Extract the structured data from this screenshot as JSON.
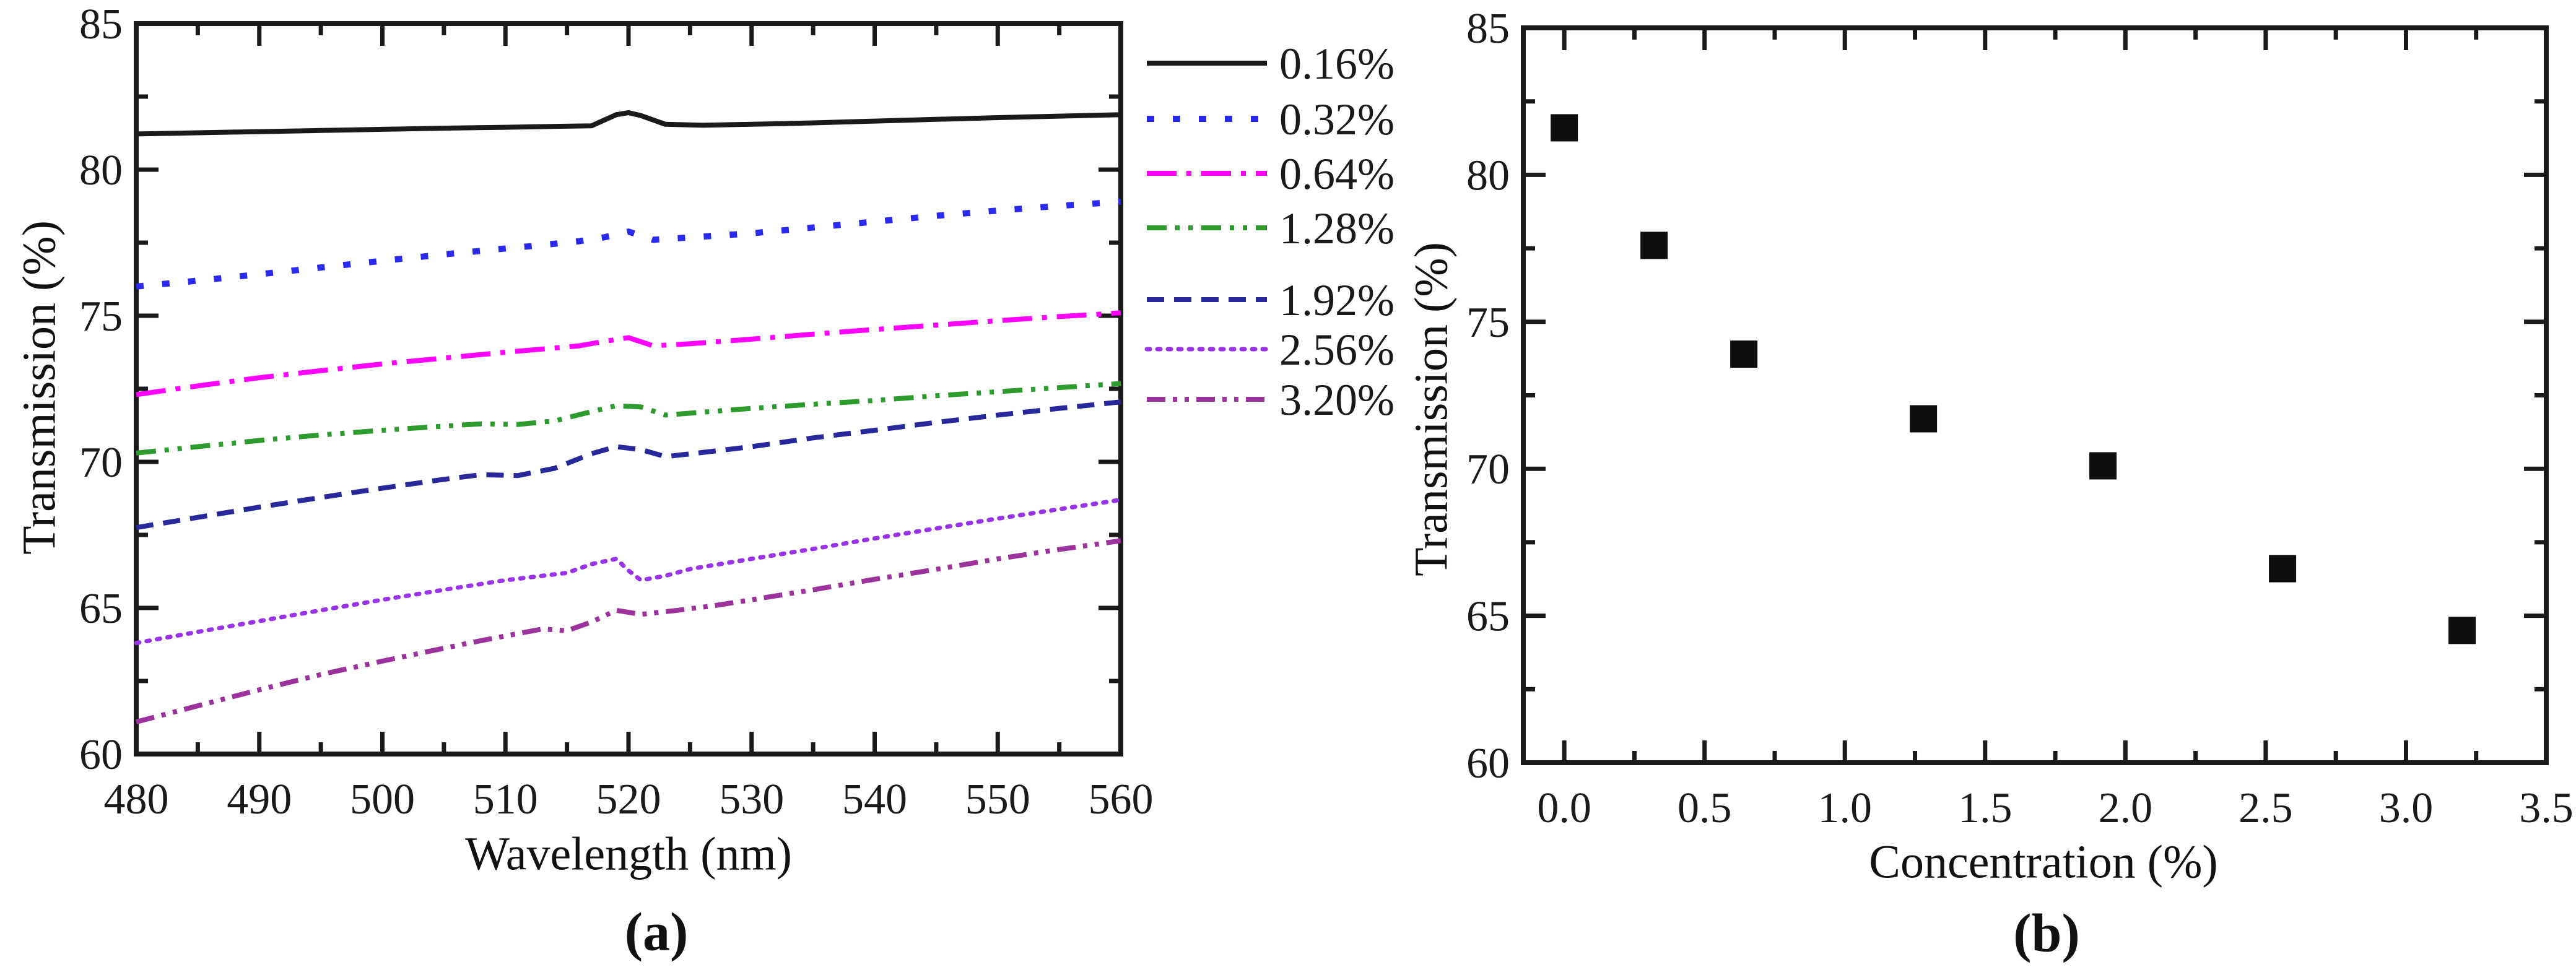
{
  "chart_data": [
    {
      "id": "a",
      "panel_label": "(a)",
      "type": "line",
      "xlabel": "Wavelength (nm)",
      "ylabel": "Transmission (%)",
      "xlim": [
        480,
        560
      ],
      "ylim": [
        60,
        85
      ],
      "x_major_ticks": [
        480,
        490,
        500,
        510,
        520,
        530,
        540,
        550,
        560
      ],
      "x_tick_labels": [
        "480",
        "490",
        "500",
        "510",
        "520",
        "530",
        "540",
        "550",
        "560"
      ],
      "x_minor_step": 5,
      "y_major_ticks": [
        60,
        65,
        70,
        75,
        80,
        85
      ],
      "y_tick_labels": [
        "60",
        "65",
        "70",
        "75",
        "80",
        "85"
      ],
      "y_minor_step": 2.5,
      "grid": false,
      "legend_position": "outside-right",
      "series": [
        {
          "name": "0.16%",
          "color": "#1a1a1a",
          "dash": [],
          "width": 8,
          "points": [
            [
              480,
              81.22
            ],
            [
              485,
              81.26
            ],
            [
              490,
              81.3
            ],
            [
              495,
              81.34
            ],
            [
              500,
              81.38
            ],
            [
              505,
              81.42
            ],
            [
              510,
              81.45
            ],
            [
              514,
              81.48
            ],
            [
              517,
              81.5
            ],
            [
              519,
              81.88
            ],
            [
              520,
              81.95
            ],
            [
              521,
              81.85
            ],
            [
              523,
              81.55
            ],
            [
              526,
              81.52
            ],
            [
              530,
              81.55
            ],
            [
              535,
              81.6
            ],
            [
              540,
              81.66
            ],
            [
              545,
              81.72
            ],
            [
              550,
              81.78
            ],
            [
              555,
              81.83
            ],
            [
              560,
              81.88
            ]
          ]
        },
        {
          "name": "0.32%",
          "color": "#2a2aee",
          "dash": [
            12,
            30
          ],
          "width": 10,
          "points": [
            [
              480,
              76.0
            ],
            [
              485,
              76.2
            ],
            [
              490,
              76.42
            ],
            [
              495,
              76.65
            ],
            [
              500,
              76.88
            ],
            [
              505,
              77.1
            ],
            [
              510,
              77.3
            ],
            [
              513,
              77.42
            ],
            [
              516,
              77.55
            ],
            [
              518,
              77.68
            ],
            [
              520,
              77.88
            ],
            [
              522,
              77.6
            ],
            [
              525,
              77.68
            ],
            [
              530,
              77.82
            ],
            [
              535,
              78.02
            ],
            [
              540,
              78.22
            ],
            [
              545,
              78.42
            ],
            [
              550,
              78.6
            ],
            [
              555,
              78.76
            ],
            [
              560,
              78.9
            ]
          ]
        },
        {
          "name": "0.64%",
          "color": "#ff00ff",
          "dash": [
            48,
            16,
            8,
            16
          ],
          "width": 8,
          "points": [
            [
              480,
              72.3
            ],
            [
              485,
              72.6
            ],
            [
              490,
              72.88
            ],
            [
              495,
              73.12
            ],
            [
              500,
              73.35
            ],
            [
              505,
              73.55
            ],
            [
              510,
              73.75
            ],
            [
              513,
              73.86
            ],
            [
              516,
              73.97
            ],
            [
              518,
              74.12
            ],
            [
              520,
              74.25
            ],
            [
              522,
              73.97
            ],
            [
              525,
              74.04
            ],
            [
              530,
              74.2
            ],
            [
              535,
              74.37
            ],
            [
              540,
              74.53
            ],
            [
              545,
              74.68
            ],
            [
              550,
              74.83
            ],
            [
              555,
              74.97
            ],
            [
              560,
              75.1
            ]
          ]
        },
        {
          "name": "1.28%",
          "color": "#2e9b2e",
          "dash": [
            32,
            14,
            7,
            14,
            7,
            14
          ],
          "width": 8,
          "points": [
            [
              480,
              70.3
            ],
            [
              485,
              70.52
            ],
            [
              490,
              70.73
            ],
            [
              495,
              70.92
            ],
            [
              500,
              71.08
            ],
            [
              505,
              71.22
            ],
            [
              508,
              71.3
            ],
            [
              511,
              71.28
            ],
            [
              514,
              71.4
            ],
            [
              517,
              71.72
            ],
            [
              519,
              71.92
            ],
            [
              521,
              71.88
            ],
            [
              523,
              71.6
            ],
            [
              526,
              71.7
            ],
            [
              530,
              71.83
            ],
            [
              535,
              71.97
            ],
            [
              540,
              72.1
            ],
            [
              545,
              72.26
            ],
            [
              550,
              72.4
            ],
            [
              555,
              72.54
            ],
            [
              560,
              72.68
            ]
          ]
        },
        {
          "name": "1.92%",
          "color": "#28289a",
          "dash": [
            28,
            16
          ],
          "width": 8,
          "points": [
            [
              480,
              67.75
            ],
            [
              485,
              68.1
            ],
            [
              490,
              68.45
            ],
            [
              495,
              68.78
            ],
            [
              500,
              69.1
            ],
            [
              505,
              69.4
            ],
            [
              508,
              69.56
            ],
            [
              511,
              69.53
            ],
            [
              514,
              69.78
            ],
            [
              517,
              70.28
            ],
            [
              519,
              70.52
            ],
            [
              521,
              70.42
            ],
            [
              523,
              70.18
            ],
            [
              526,
              70.32
            ],
            [
              530,
              70.52
            ],
            [
              535,
              70.82
            ],
            [
              540,
              71.08
            ],
            [
              545,
              71.35
            ],
            [
              550,
              71.6
            ],
            [
              555,
              71.83
            ],
            [
              560,
              72.05
            ]
          ]
        },
        {
          "name": "2.56%",
          "color": "#9933e6",
          "dash": [
            5,
            12
          ],
          "width": 7,
          "points": [
            [
              480,
              63.8
            ],
            [
              485,
              64.18
            ],
            [
              490,
              64.55
            ],
            [
              495,
              64.92
            ],
            [
              500,
              65.28
            ],
            [
              505,
              65.62
            ],
            [
              510,
              65.95
            ],
            [
              513,
              66.1
            ],
            [
              515,
              66.2
            ],
            [
              517,
              66.5
            ],
            [
              519,
              66.68
            ],
            [
              520,
              66.28
            ],
            [
              521,
              65.95
            ],
            [
              523,
              66.1
            ],
            [
              525,
              66.33
            ],
            [
              530,
              66.68
            ],
            [
              535,
              67.02
            ],
            [
              540,
              67.38
            ],
            [
              545,
              67.72
            ],
            [
              550,
              68.06
            ],
            [
              555,
              68.38
            ],
            [
              560,
              68.7
            ]
          ]
        },
        {
          "name": "3.20%",
          "color": "#9c339c",
          "dash": [
            30,
            12,
            7,
            12,
            7,
            12
          ],
          "width": 8,
          "points": [
            [
              480,
              61.1
            ],
            [
              485,
              61.65
            ],
            [
              490,
              62.2
            ],
            [
              495,
              62.72
            ],
            [
              500,
              63.18
            ],
            [
              505,
              63.62
            ],
            [
              508,
              63.88
            ],
            [
              511,
              64.12
            ],
            [
              513,
              64.28
            ],
            [
              515,
              64.22
            ],
            [
              517,
              64.52
            ],
            [
              519,
              64.92
            ],
            [
              521,
              64.78
            ],
            [
              524,
              64.92
            ],
            [
              527,
              65.08
            ],
            [
              530,
              65.28
            ],
            [
              535,
              65.62
            ],
            [
              540,
              65.98
            ],
            [
              545,
              66.32
            ],
            [
              550,
              66.68
            ],
            [
              555,
              67.0
            ],
            [
              560,
              67.3
            ]
          ]
        }
      ]
    },
    {
      "id": "b",
      "panel_label": "(b)",
      "type": "scatter",
      "xlabel": "Concentration (%)",
      "ylabel": "Transmission (%)",
      "xlim": [
        -0.146,
        3.5
      ],
      "ylim": [
        60,
        85
      ],
      "x_major_ticks": [
        0,
        0.5,
        1,
        1.5,
        2,
        2.5,
        3,
        3.5
      ],
      "x_tick_labels": [
        "0.0",
        "0.5",
        "1.0",
        "1.5",
        "2.0",
        "2.5",
        "3.0",
        "3.5"
      ],
      "x_minor_step": 0.25,
      "y_major_ticks": [
        60,
        65,
        70,
        75,
        80,
        85
      ],
      "y_tick_labels": [
        "60",
        "65",
        "70",
        "75",
        "80",
        "85"
      ],
      "y_minor_step": 2.5,
      "grid": false,
      "marker": {
        "shape": "square",
        "size": 44,
        "color": "#0d0d0d"
      },
      "points": [
        [
          0.0,
          81.6
        ],
        [
          0.32,
          77.6
        ],
        [
          0.64,
          73.9
        ],
        [
          1.28,
          71.7
        ],
        [
          1.92,
          70.1
        ],
        [
          2.56,
          66.6
        ],
        [
          3.2,
          64.5
        ]
      ]
    }
  ]
}
